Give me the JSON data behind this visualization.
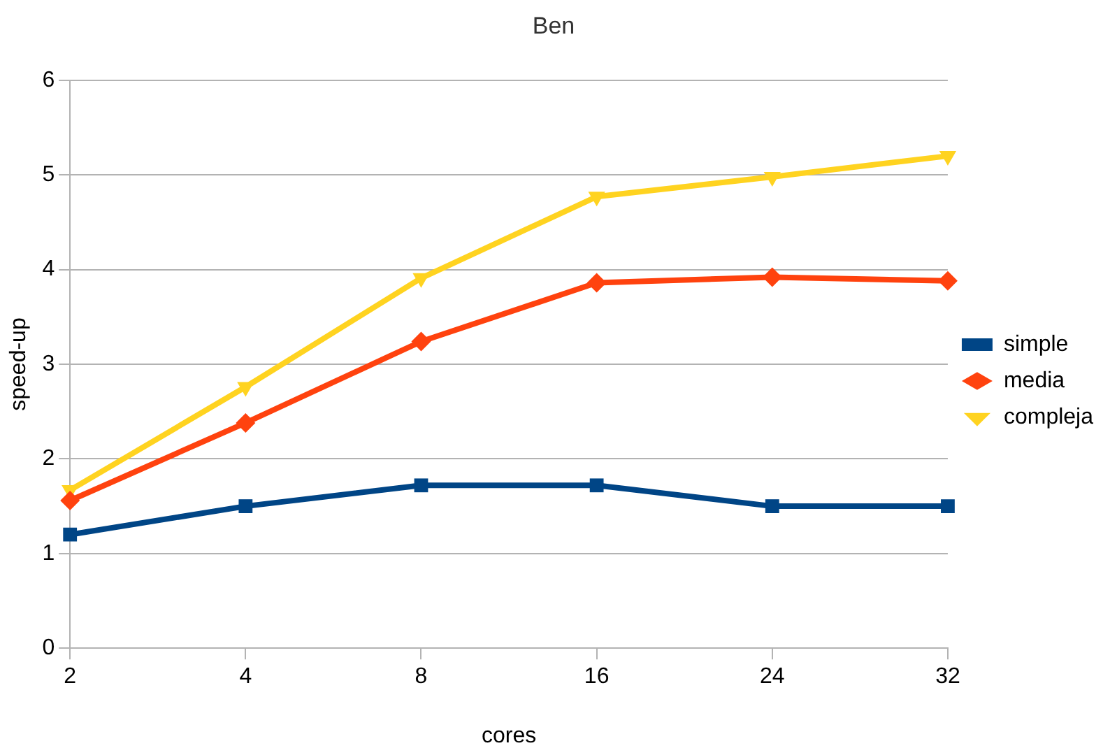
{
  "chart_data": {
    "type": "line",
    "title": "Ben",
    "xlabel": "cores",
    "ylabel": "speed-up",
    "categories": [
      "2",
      "4",
      "8",
      "16",
      "24",
      "32"
    ],
    "series": [
      {
        "name": "simple",
        "color": "#004586",
        "marker": "square",
        "values": [
          1.2,
          1.5,
          1.72,
          1.72,
          1.5,
          1.5
        ]
      },
      {
        "name": "media",
        "color": "#ff420e",
        "marker": "diamond",
        "values": [
          1.56,
          2.38,
          3.24,
          3.86,
          3.92,
          3.88
        ]
      },
      {
        "name": "compleja",
        "color": "#ffd320",
        "marker": "triangle",
        "values": [
          1.67,
          2.76,
          3.91,
          4.77,
          4.98,
          5.2
        ]
      }
    ],
    "ylim": [
      0,
      6
    ],
    "yticks": [
      0,
      1,
      2,
      3,
      4,
      5,
      6
    ],
    "grid": "y",
    "legend": "right"
  }
}
